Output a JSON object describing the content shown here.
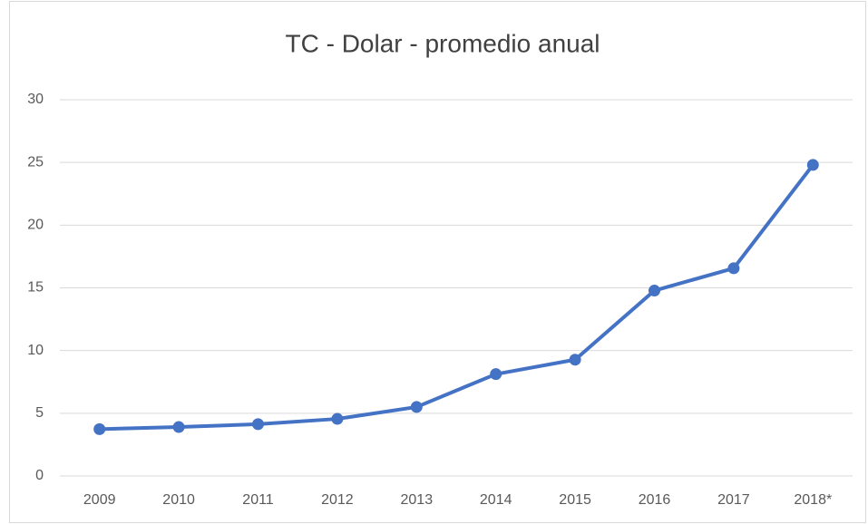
{
  "chart_data": {
    "type": "line",
    "title": "TC - Dolar - promedio anual",
    "categories": [
      "2009",
      "2010",
      "2011",
      "2012",
      "2013",
      "2014",
      "2015",
      "2016",
      "2017",
      "2018*"
    ],
    "series": [
      {
        "color": "#4472c4",
        "values": [
          3.73,
          3.9,
          4.13,
          4.55,
          5.5,
          8.12,
          9.27,
          14.78,
          16.56,
          24.8
        ]
      }
    ],
    "ylim": [
      0,
      30
    ],
    "yticks": [
      0,
      5,
      10,
      15,
      20,
      25,
      30
    ],
    "grid": true
  }
}
